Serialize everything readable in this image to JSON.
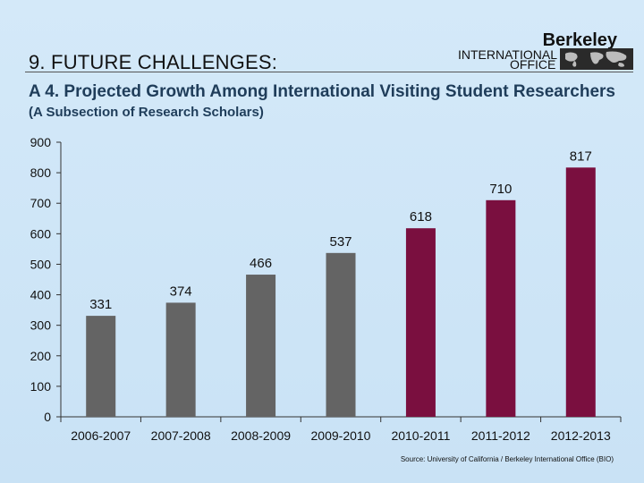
{
  "header": {
    "section_title": "9. FUTURE CHALLENGES:",
    "logo_line1": "Berkeley",
    "logo_line2": "INTERNATIONAL",
    "logo_line3": "OFFICE"
  },
  "subtitle": {
    "main": "A 4. Projected Growth Among International Visiting Student Researchers",
    "note": "(A Subsection of Research Scholars)"
  },
  "source": "Source:  University of California / Berkeley International Office (BIO)",
  "colors": {
    "actual": "#646464",
    "projected": "#7a0f3f",
    "axis": "#333333"
  },
  "chart_data": {
    "type": "bar",
    "title": "A 4. Projected Growth Among International Visiting Student Researchers",
    "xlabel": "",
    "ylabel": "",
    "categories": [
      "2006-2007",
      "2007-2008",
      "2008-2009",
      "2009-2010",
      "2010-2011",
      "2011-2012",
      "2012-2013"
    ],
    "values": [
      331,
      374,
      466,
      537,
      618,
      710,
      817
    ],
    "data_labels": [
      "331",
      "374",
      "466",
      "537",
      "618",
      "710",
      "817"
    ],
    "bar_kind": [
      "actual",
      "actual",
      "actual",
      "actual",
      "projected",
      "projected",
      "projected"
    ],
    "ylim": [
      0,
      900
    ],
    "yticks": [
      0,
      100,
      200,
      300,
      400,
      500,
      600,
      700,
      800,
      900
    ],
    "grid": false
  }
}
